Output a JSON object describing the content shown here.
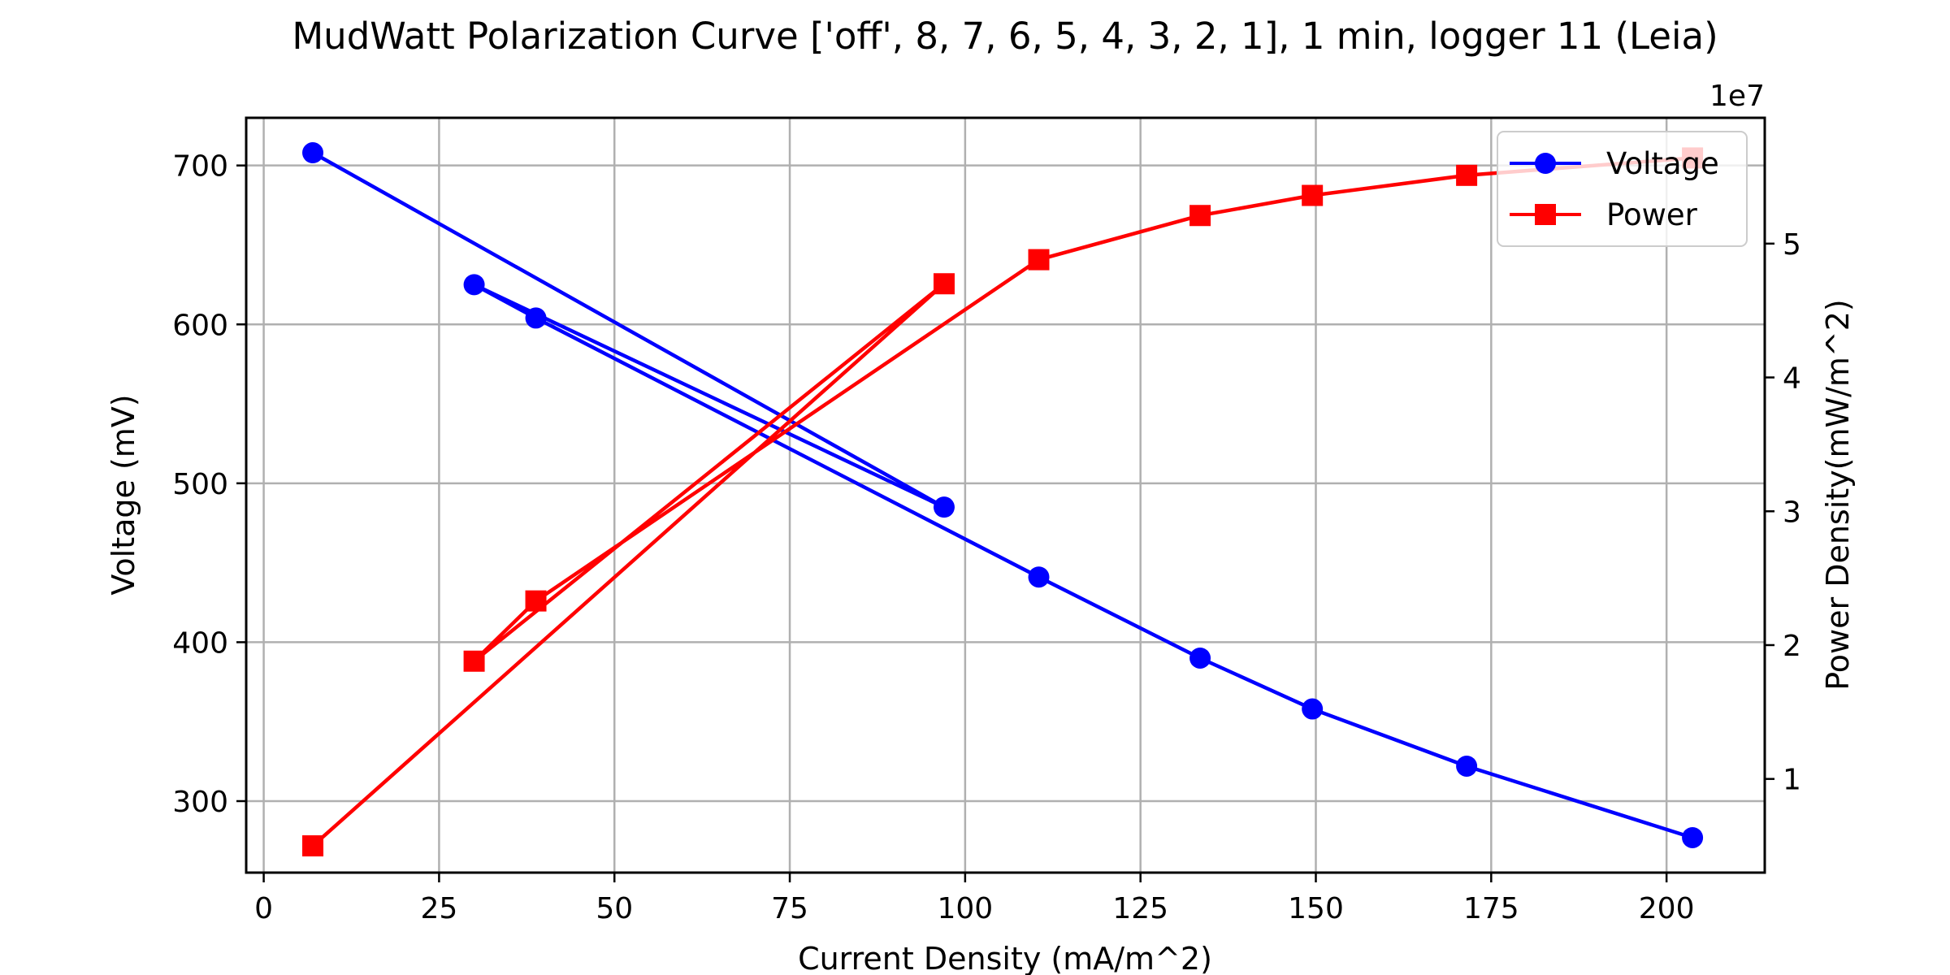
{
  "chart_data": {
    "type": "line",
    "title": "MudWatt Polarization Curve ['off', 8, 7, 6, 5, 4, 3, 2, 1], 1 min, logger 11 (Leia)",
    "xlabel": "Current Density (mA/m^2)",
    "ylabel": "Voltage (mV)",
    "y2label": "Power Density(mW/m^2)",
    "y2_offset_text": "1e7",
    "xlim": [
      -2.5,
      214
    ],
    "ylim": [
      255,
      730
    ],
    "y2lim": [
      0.3,
      5.94
    ],
    "y2_unit_multiplier": 10000000,
    "xticks": [
      0,
      25,
      50,
      75,
      100,
      125,
      150,
      175,
      200
    ],
    "yticks": [
      300,
      400,
      500,
      600,
      700
    ],
    "y2ticks": [
      1,
      2,
      3,
      4,
      5
    ],
    "grid": true,
    "legend_position": "top-right",
    "series": [
      {
        "name": "Voltage",
        "axis": "left",
        "color": "#0000ff",
        "marker": "circle",
        "x": [
          7.0,
          97.0,
          30.0,
          38.8,
          110.5,
          133.5,
          149.5,
          171.5,
          203.7
        ],
        "y": [
          708,
          485,
          625,
          604,
          441,
          390,
          358,
          322,
          277
        ]
      },
      {
        "name": "Power",
        "axis": "right",
        "color": "#ff0000",
        "marker": "square",
        "x": [
          7.0,
          97.0,
          30.0,
          38.8,
          110.5,
          133.5,
          149.5,
          171.5,
          203.7
        ],
        "y": [
          0.5,
          4.7,
          1.88,
          2.33,
          4.88,
          5.21,
          5.36,
          5.51,
          5.64
        ]
      }
    ]
  }
}
